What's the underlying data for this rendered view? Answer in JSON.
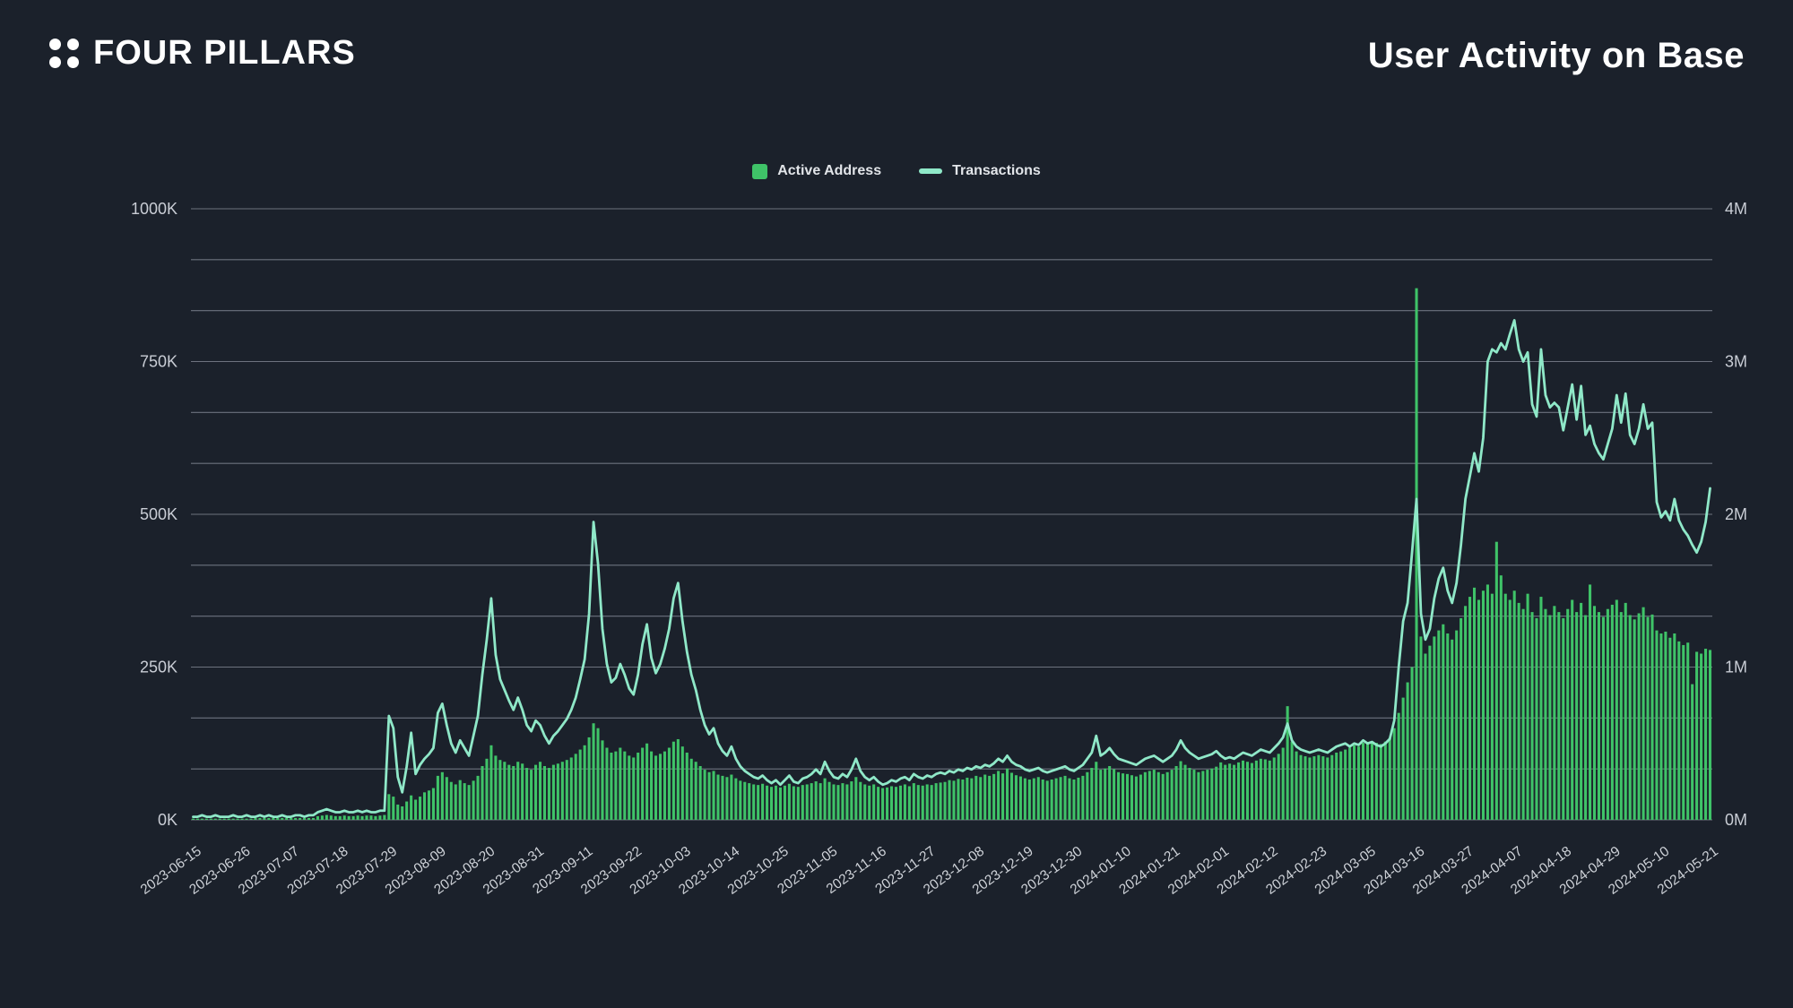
{
  "header": {
    "logo_text": "FOUR PILLARS",
    "logo_icon": "four-dots-icon",
    "title": "User Activity on Base"
  },
  "legend": {
    "items": [
      {
        "label": "Active Address",
        "marker": "square",
        "color": "#3fc368"
      },
      {
        "label": "Transactions",
        "marker": "line",
        "color": "#8fe8c8"
      }
    ]
  },
  "colors": {
    "background": "#1b212b",
    "gridline": "rgba(176,183,194,0.55)",
    "bar": "#3fc368",
    "line": "#8fe8c8",
    "axis_text": "#c9cdd5",
    "x_tick_text": "#ced2d8",
    "title_text": "#ffffff"
  },
  "chart_data": {
    "type": "bar",
    "subtype": "bar+line dual-axis combo, daily data",
    "title": "User Activity on Base",
    "x_interval": "daily",
    "x_range": [
      "2023-06-15",
      "2024-05-21"
    ],
    "x_tick_labels": [
      "2023-06-15",
      "2023-06-26",
      "2023-07-07",
      "2023-07-18",
      "2023-07-29",
      "2023-08-09",
      "2023-08-20",
      "2023-08-31",
      "2023-09-11",
      "2023-09-22",
      "2023-10-03",
      "2023-10-14",
      "2023-10-25",
      "2023-11-05",
      "2023-11-16",
      "2023-11-27",
      "2023-12-08",
      "2023-12-19",
      "2023-12-30",
      "2024-01-10",
      "2024-01-21",
      "2024-02-01",
      "2024-02-12",
      "2024-02-23",
      "2024-03-05",
      "2024-03-16",
      "2024-03-27",
      "2024-04-07",
      "2024-04-18",
      "2024-04-29",
      "2024-05-10",
      "2024-05-21"
    ],
    "x_tick_interval_days": 11,
    "grid": "13 horizontal gridlines (every 1/12 of axis height)",
    "legend_position": "top-center",
    "left_axis": {
      "series": "Active Address",
      "tick_labels": [
        "0K",
        "250K",
        "500K",
        "750K",
        "1000K"
      ],
      "range_k": [
        0,
        1000
      ]
    },
    "right_axis": {
      "series": "Transactions",
      "tick_labels": [
        "0M",
        "1M",
        "2M",
        "3M",
        "4M"
      ],
      "range_m": [
        0,
        4
      ]
    },
    "series": [
      {
        "name": "Active Address",
        "type": "bar",
        "axis": "left",
        "unit": "thousand addresses (K)",
        "color": "#3fc368",
        "values_k": [
          2,
          2,
          2,
          2,
          2,
          2,
          2,
          2,
          2,
          2,
          2,
          2,
          2,
          2,
          3,
          3,
          3,
          3,
          3,
          3,
          3,
          3,
          3,
          3,
          3,
          3,
          3,
          3,
          6,
          7,
          8,
          7,
          6,
          6,
          7,
          6,
          6,
          7,
          6,
          7,
          7,
          6,
          7,
          8,
          42,
          38,
          25,
          22,
          30,
          40,
          33,
          38,
          45,
          48,
          52,
          72,
          78,
          70,
          62,
          58,
          65,
          60,
          57,
          64,
          72,
          88,
          100,
          122,
          105,
          98,
          95,
          90,
          88,
          95,
          92,
          85,
          82,
          90,
          95,
          88,
          85,
          90,
          92,
          95,
          98,
          102,
          108,
          115,
          122,
          135,
          158,
          150,
          130,
          118,
          110,
          112,
          118,
          112,
          105,
          102,
          110,
          118,
          125,
          112,
          105,
          108,
          112,
          118,
          128,
          132,
          120,
          110,
          100,
          95,
          88,
          82,
          78,
          80,
          74,
          72,
          70,
          74,
          68,
          64,
          62,
          60,
          58,
          57,
          59,
          56,
          54,
          56,
          53,
          56,
          59,
          55,
          54,
          57,
          58,
          60,
          63,
          60,
          68,
          62,
          58,
          57,
          60,
          58,
          63,
          70,
          62,
          58,
          56,
          58,
          54,
          52,
          53,
          55,
          54,
          56,
          58,
          55,
          60,
          57,
          56,
          58,
          57,
          60,
          61,
          62,
          65,
          64,
          67,
          66,
          69,
          68,
          72,
          70,
          74,
          72,
          75,
          80,
          76,
          84,
          77,
          73,
          71,
          68,
          66,
          68,
          70,
          66,
          64,
          66,
          68,
          70,
          72,
          68,
          66,
          69,
          72,
          78,
          85,
          95,
          82,
          84,
          88,
          83,
          78,
          76,
          75,
          73,
          71,
          74,
          78,
          80,
          82,
          78,
          75,
          78,
          82,
          88,
          96,
          90,
          85,
          82,
          78,
          80,
          82,
          84,
          87,
          94,
          90,
          92,
          90,
          94,
          97,
          95,
          93,
          97,
          100,
          99,
          97,
          102,
          108,
          118,
          186,
          128,
          112,
          106,
          104,
          102,
          104,
          106,
          104,
          102,
          106,
          110,
          112,
          115,
          118,
          122,
          120,
          126,
          124,
          128,
          126,
          124,
          128,
          134,
          150,
          175,
          200,
          225,
          250,
          870,
          300,
          272,
          285,
          300,
          310,
          320,
          305,
          295,
          310,
          330,
          350,
          365,
          380,
          360,
          375,
          385,
          370,
          455,
          400,
          370,
          360,
          375,
          355,
          345,
          370,
          340,
          330,
          365,
          345,
          335,
          350,
          340,
          330,
          345,
          360,
          340,
          355,
          335,
          385,
          350,
          340,
          332,
          345,
          352,
          360,
          340,
          355,
          335,
          328,
          338,
          348,
          332,
          336,
          310,
          305,
          308,
          298,
          305,
          292,
          286,
          290,
          222,
          275,
          272,
          280,
          278
        ]
      },
      {
        "name": "Transactions",
        "type": "line",
        "axis": "right",
        "unit": "million transactions (M)",
        "color": "#8fe8c8",
        "values_m": [
          0.02,
          0.02,
          0.03,
          0.02,
          0.02,
          0.03,
          0.02,
          0.02,
          0.02,
          0.03,
          0.02,
          0.02,
          0.03,
          0.02,
          0.02,
          0.03,
          0.02,
          0.03,
          0.02,
          0.02,
          0.03,
          0.02,
          0.02,
          0.03,
          0.03,
          0.02,
          0.03,
          0.03,
          0.05,
          0.06,
          0.07,
          0.06,
          0.05,
          0.05,
          0.06,
          0.05,
          0.05,
          0.06,
          0.05,
          0.06,
          0.05,
          0.05,
          0.06,
          0.06,
          0.68,
          0.6,
          0.28,
          0.18,
          0.35,
          0.57,
          0.3,
          0.36,
          0.4,
          0.43,
          0.47,
          0.7,
          0.76,
          0.62,
          0.5,
          0.44,
          0.52,
          0.47,
          0.42,
          0.55,
          0.68,
          0.95,
          1.18,
          1.45,
          1.08,
          0.92,
          0.85,
          0.78,
          0.72,
          0.8,
          0.72,
          0.62,
          0.58,
          0.65,
          0.62,
          0.55,
          0.5,
          0.55,
          0.58,
          0.62,
          0.66,
          0.72,
          0.8,
          0.92,
          1.05,
          1.35,
          1.95,
          1.68,
          1.25,
          1.02,
          0.9,
          0.93,
          1.02,
          0.95,
          0.86,
          0.82,
          0.95,
          1.15,
          1.28,
          1.06,
          0.96,
          1.02,
          1.12,
          1.25,
          1.45,
          1.55,
          1.3,
          1.1,
          0.95,
          0.85,
          0.72,
          0.62,
          0.56,
          0.6,
          0.5,
          0.45,
          0.42,
          0.48,
          0.4,
          0.35,
          0.32,
          0.3,
          0.28,
          0.27,
          0.29,
          0.26,
          0.24,
          0.26,
          0.23,
          0.26,
          0.29,
          0.25,
          0.24,
          0.27,
          0.28,
          0.3,
          0.33,
          0.3,
          0.38,
          0.32,
          0.28,
          0.27,
          0.3,
          0.28,
          0.33,
          0.4,
          0.32,
          0.28,
          0.26,
          0.28,
          0.25,
          0.23,
          0.24,
          0.26,
          0.25,
          0.27,
          0.28,
          0.26,
          0.3,
          0.28,
          0.27,
          0.29,
          0.28,
          0.3,
          0.31,
          0.3,
          0.32,
          0.31,
          0.33,
          0.32,
          0.34,
          0.33,
          0.35,
          0.34,
          0.36,
          0.35,
          0.37,
          0.4,
          0.38,
          0.42,
          0.38,
          0.36,
          0.35,
          0.33,
          0.32,
          0.33,
          0.34,
          0.32,
          0.31,
          0.32,
          0.33,
          0.34,
          0.35,
          0.33,
          0.32,
          0.34,
          0.36,
          0.4,
          0.44,
          0.55,
          0.42,
          0.44,
          0.47,
          0.43,
          0.4,
          0.39,
          0.38,
          0.37,
          0.36,
          0.38,
          0.4,
          0.41,
          0.42,
          0.4,
          0.38,
          0.4,
          0.42,
          0.46,
          0.52,
          0.47,
          0.44,
          0.42,
          0.4,
          0.41,
          0.42,
          0.43,
          0.45,
          0.42,
          0.4,
          0.41,
          0.4,
          0.42,
          0.44,
          0.43,
          0.42,
          0.44,
          0.46,
          0.45,
          0.44,
          0.47,
          0.5,
          0.54,
          0.63,
          0.52,
          0.48,
          0.46,
          0.45,
          0.44,
          0.45,
          0.46,
          0.45,
          0.44,
          0.46,
          0.48,
          0.49,
          0.5,
          0.48,
          0.5,
          0.49,
          0.52,
          0.5,
          0.51,
          0.49,
          0.48,
          0.5,
          0.53,
          0.65,
          1.0,
          1.3,
          1.42,
          1.75,
          2.1,
          1.35,
          1.18,
          1.25,
          1.45,
          1.58,
          1.65,
          1.5,
          1.42,
          1.55,
          1.8,
          2.1,
          2.25,
          2.4,
          2.28,
          2.5,
          3.0,
          3.08,
          3.06,
          3.12,
          3.08,
          3.18,
          3.27,
          3.08,
          3.0,
          3.06,
          2.72,
          2.64,
          3.08,
          2.78,
          2.7,
          2.73,
          2.7,
          2.55,
          2.7,
          2.85,
          2.62,
          2.84,
          2.52,
          2.58,
          2.46,
          2.4,
          2.36,
          2.46,
          2.56,
          2.78,
          2.6,
          2.79,
          2.52,
          2.46,
          2.56,
          2.72,
          2.56,
          2.6,
          2.08,
          1.98,
          2.02,
          1.96,
          2.1,
          1.96,
          1.9,
          1.86,
          1.8,
          1.75,
          1.82,
          1.95,
          2.17
        ]
      }
    ]
  }
}
